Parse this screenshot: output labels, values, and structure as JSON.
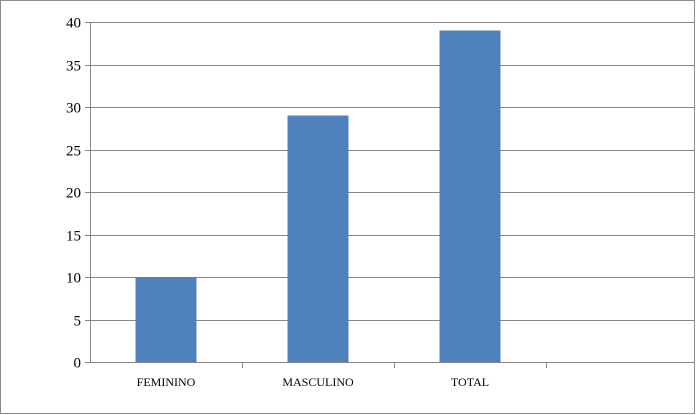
{
  "chart_data": {
    "type": "bar",
    "categories": [
      "FEMININO",
      "MASCULINO",
      "TOTAL"
    ],
    "slots": 4,
    "values": [
      10,
      29,
      39
    ],
    "ylim": [
      0,
      40
    ],
    "yticks": [
      0,
      5,
      10,
      15,
      20,
      25,
      30,
      35,
      40
    ],
    "title": "",
    "xlabel": "",
    "ylabel": "",
    "grid": true,
    "legend": "none",
    "bar_color": "#4f81bd",
    "grid_color": "#868686",
    "axis_color": "#868686"
  }
}
